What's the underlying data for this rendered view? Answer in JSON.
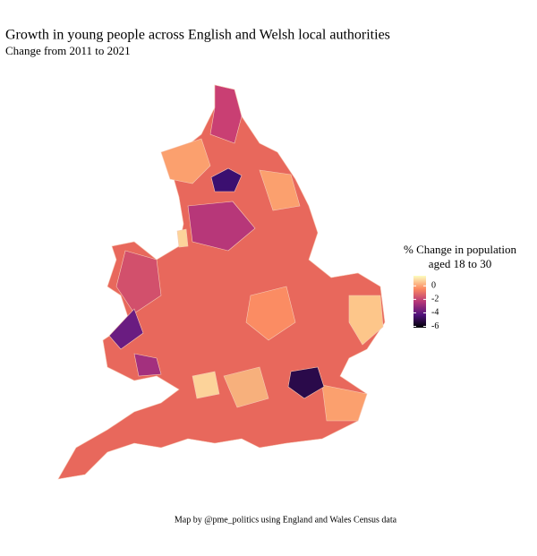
{
  "chart_data": {
    "type": "choropleth",
    "title": "Growth in young people across English and Welsh local authorities",
    "subtitle": "Change from 2011 to 2021",
    "legend": {
      "title": [
        "% Change in population",
        "aged 18 to 30"
      ],
      "lim": [
        -6.2,
        1.5
      ],
      "ticks": [
        0,
        -2,
        -4,
        -6
      ],
      "colors": [
        "#000004",
        "#51127c",
        "#b73779",
        "#fc8961",
        "#fcfdbf"
      ]
    },
    "caption": "Map by @pme_politics using England and Wales Census data"
  }
}
